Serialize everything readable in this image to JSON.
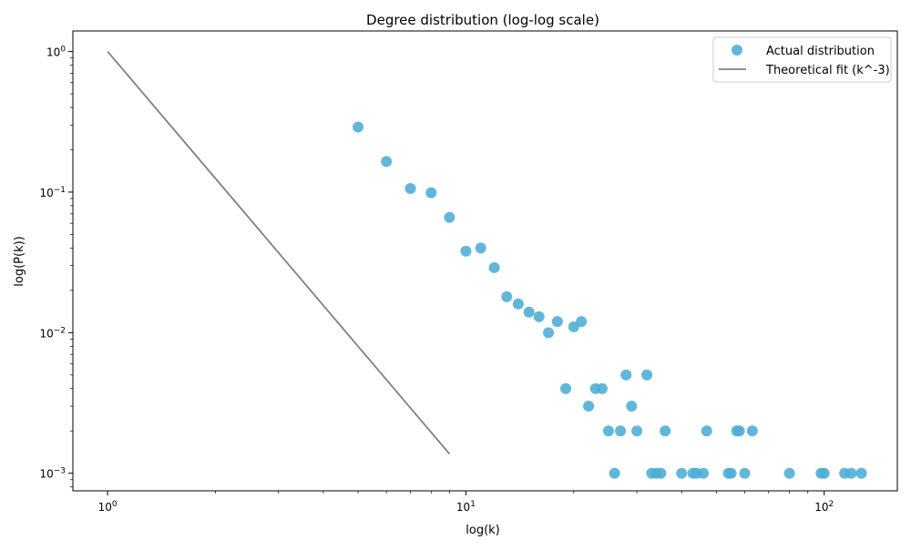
{
  "chart_data": {
    "type": "scatter",
    "title": "Degree distribution (log-log scale)",
    "xlabel": "log(k)",
    "ylabel": "log(P(k))",
    "xscale": "log",
    "yscale": "log",
    "xlim": [
      0.8,
      160
    ],
    "ylim": [
      0.00075,
      1.4
    ],
    "x_ticks": [
      {
        "value": 1,
        "base": "10",
        "exp": "0"
      },
      {
        "value": 10,
        "base": "10",
        "exp": "1"
      },
      {
        "value": 100,
        "base": "10",
        "exp": "2"
      }
    ],
    "y_ticks": [
      {
        "value": 0.001,
        "base": "10",
        "exp": "−3"
      },
      {
        "value": 0.01,
        "base": "10",
        "exp": "−2"
      },
      {
        "value": 0.1,
        "base": "10",
        "exp": "−1"
      },
      {
        "value": 1,
        "base": "10",
        "exp": "0"
      }
    ],
    "grid": false,
    "legend_position": "top-right",
    "series": [
      {
        "name": "Actual distribution",
        "kind": "scatter",
        "color": "#4badd4",
        "points": [
          [
            5,
            0.29
          ],
          [
            6,
            0.165
          ],
          [
            7,
            0.106
          ],
          [
            8,
            0.099
          ],
          [
            9,
            0.066
          ],
          [
            10,
            0.038
          ],
          [
            11,
            0.04
          ],
          [
            12,
            0.029
          ],
          [
            13,
            0.018
          ],
          [
            14,
            0.016
          ],
          [
            15,
            0.014
          ],
          [
            16,
            0.013
          ],
          [
            17,
            0.01
          ],
          [
            18,
            0.012
          ],
          [
            19,
            0.004
          ],
          [
            20,
            0.011
          ],
          [
            21,
            0.012
          ],
          [
            22,
            0.003
          ],
          [
            23,
            0.004
          ],
          [
            24,
            0.004
          ],
          [
            25,
            0.002
          ],
          [
            26,
            0.001
          ],
          [
            27,
            0.002
          ],
          [
            28,
            0.005
          ],
          [
            29,
            0.003
          ],
          [
            30,
            0.002
          ],
          [
            32,
            0.005
          ],
          [
            33,
            0.001
          ],
          [
            34,
            0.001
          ],
          [
            35,
            0.001
          ],
          [
            36,
            0.002
          ],
          [
            40,
            0.001
          ],
          [
            43,
            0.001
          ],
          [
            44,
            0.001
          ],
          [
            46,
            0.001
          ],
          [
            47,
            0.002
          ],
          [
            54,
            0.001
          ],
          [
            55,
            0.001
          ],
          [
            57,
            0.002
          ],
          [
            58,
            0.002
          ],
          [
            60,
            0.001
          ],
          [
            63,
            0.002
          ],
          [
            80,
            0.001
          ],
          [
            98,
            0.001
          ],
          [
            100,
            0.001
          ],
          [
            114,
            0.001
          ],
          [
            119,
            0.001
          ],
          [
            127,
            0.001
          ]
        ]
      },
      {
        "name": "Theoretical fit (k^-3)",
        "kind": "line",
        "color": "#808080",
        "points": [
          [
            1,
            1
          ],
          [
            2,
            0.125
          ],
          [
            3,
            0.037037
          ],
          [
            4,
            0.015625
          ],
          [
            5,
            0.008
          ],
          [
            6,
            0.00463
          ],
          [
            7,
            0.002915
          ],
          [
            8,
            0.001953
          ],
          [
            9,
            0.001372
          ]
        ]
      }
    ]
  }
}
